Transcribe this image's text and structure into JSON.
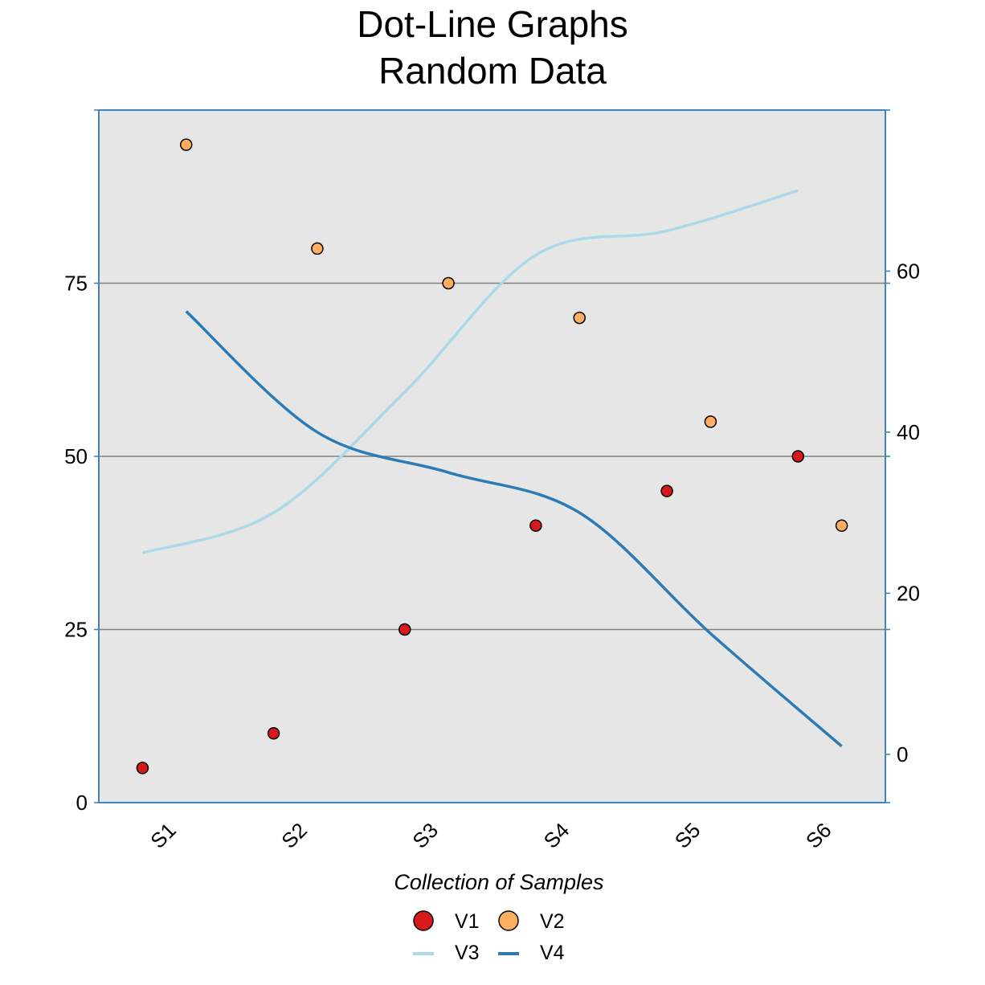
{
  "chart_data": {
    "type": "line",
    "title": [
      "Dot-Line Graphs",
      "Random Data"
    ],
    "xlabel": "Collection of Samples",
    "ylabel": "",
    "y2label": "",
    "categories": [
      "S1",
      "S2",
      "S3",
      "S4",
      "S5",
      "S6"
    ],
    "ylim": [
      0,
      100
    ],
    "yticks": [
      0,
      25,
      50,
      75
    ],
    "y2lim": [
      -6,
      80
    ],
    "y2ticks": [
      0,
      20,
      40,
      60
    ],
    "grid": "horizontal, primary axis",
    "legend_position": "bottom",
    "series": [
      {
        "name": "V1",
        "kind": "dots",
        "axis": "left",
        "color": "#d7191c",
        "offset": "left",
        "values": [
          5,
          10,
          25,
          40,
          45,
          50
        ]
      },
      {
        "name": "V2",
        "kind": "dots",
        "axis": "left",
        "color": "#fdae61",
        "offset": "right",
        "values": [
          95,
          80,
          75,
          70,
          55,
          40
        ]
      },
      {
        "name": "V3",
        "kind": "line",
        "axis": "right",
        "color": "#abd9e9",
        "offset": "left",
        "values": [
          25,
          30,
          45,
          62,
          65,
          70
        ]
      },
      {
        "name": "V4",
        "kind": "line",
        "axis": "right",
        "color": "#2c7bb6",
        "offset": "right",
        "values": [
          55,
          40,
          35,
          30,
          15,
          1
        ]
      }
    ],
    "colors": {
      "panel": "#e6e6e6",
      "axis": "#4682b4",
      "grid": "#808080"
    }
  }
}
